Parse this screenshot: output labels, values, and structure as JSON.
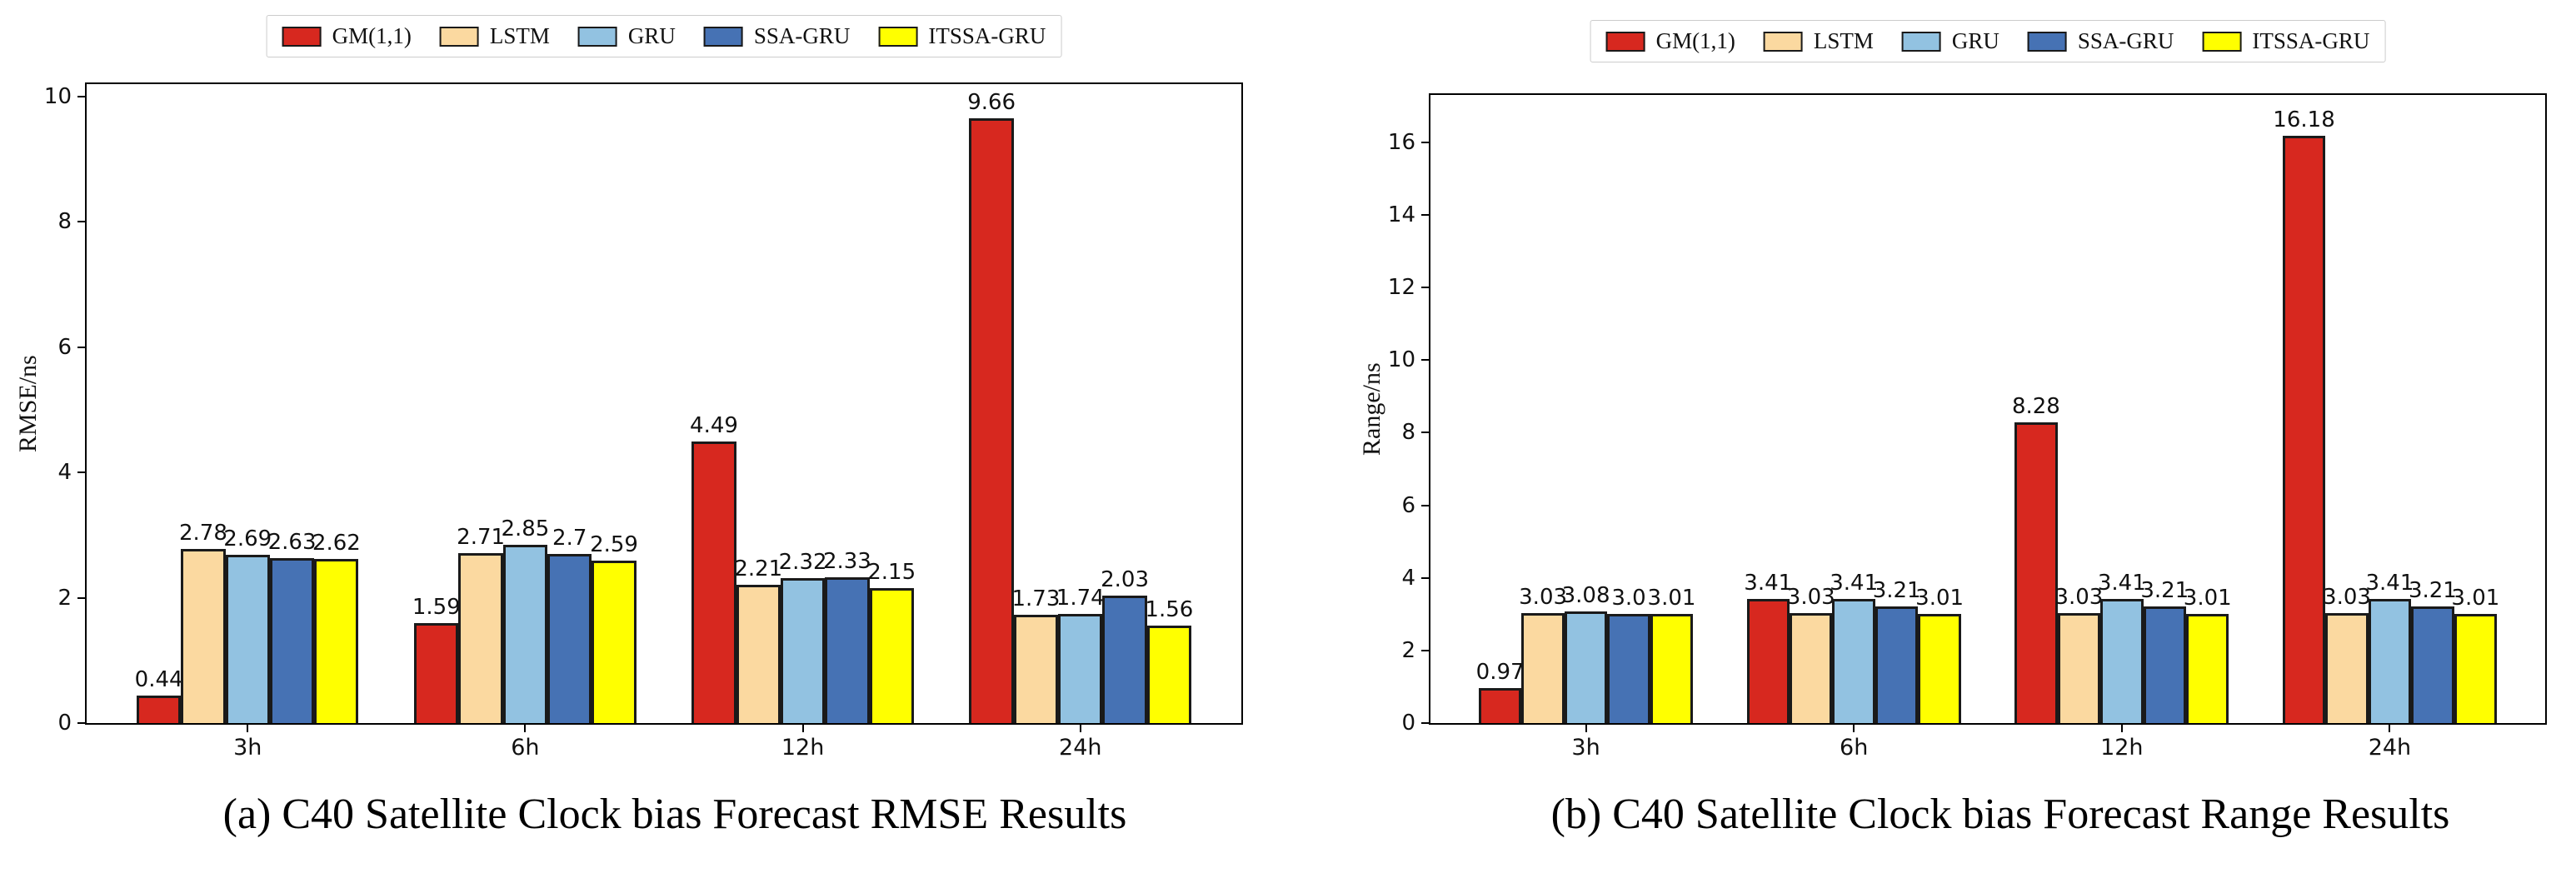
{
  "bar_edge_color": "#1a1a1a",
  "chart_data": [
    {
      "type": "bar",
      "title": "(a) C40 Satellite Clock bias Forecast RMSE Results",
      "xlabel": "",
      "ylabel": "RMSE/ns",
      "categories": [
        "3h",
        "6h",
        "12h",
        "24h"
      ],
      "ylim": [
        0,
        10.2
      ],
      "yticks": [
        0,
        2,
        4,
        6,
        8,
        10
      ],
      "grid": false,
      "legend_position": "top-center",
      "series": [
        {
          "name": "GM(1,1)",
          "color": "#d7281f",
          "values": [
            0.44,
            1.59,
            4.49,
            9.66
          ],
          "labels": [
            "0.44",
            "1.59",
            "4.49",
            "9.66"
          ]
        },
        {
          "name": "LSTM",
          "color": "#fbd9a0",
          "values": [
            2.78,
            2.71,
            2.21,
            1.73
          ],
          "labels": [
            "2.78",
            "2.71",
            "2.21",
            "1.73"
          ]
        },
        {
          "name": "GRU",
          "color": "#92c2e1",
          "values": [
            2.69,
            2.85,
            2.32,
            1.74
          ],
          "labels": [
            "2.69",
            "2.85",
            "2.32",
            "1.74"
          ]
        },
        {
          "name": "SSA-GRU",
          "color": "#4672b4",
          "values": [
            2.63,
            2.7,
            2.33,
            2.03
          ],
          "labels": [
            "2.63",
            "2.7",
            "2.33",
            "2.03"
          ]
        },
        {
          "name": "ITSSA-GRU",
          "color": "#ffff00",
          "values": [
            2.62,
            2.59,
            2.15,
            1.56
          ],
          "labels": [
            "2.62",
            "2.59",
            "2.15",
            "1.56"
          ]
        }
      ]
    },
    {
      "type": "bar",
      "title": "(b) C40 Satellite Clock bias Forecast Range Results",
      "xlabel": "",
      "ylabel": "Range/ns",
      "categories": [
        "3h",
        "6h",
        "12h",
        "24h"
      ],
      "ylim": [
        0,
        17.3
      ],
      "yticks": [
        0,
        2,
        4,
        6,
        8,
        10,
        12,
        14,
        16
      ],
      "grid": false,
      "legend_position": "top-center",
      "series": [
        {
          "name": "GM(1,1)",
          "color": "#d7281f",
          "values": [
            0.97,
            3.41,
            8.28,
            16.18
          ],
          "labels": [
            "0.97",
            "3.41",
            "8.28",
            "16.18"
          ]
        },
        {
          "name": "LSTM",
          "color": "#fbd9a0",
          "values": [
            3.03,
            3.03,
            3.03,
            3.03
          ],
          "labels": [
            "3.03",
            "3.03",
            "3.03",
            "3.03"
          ]
        },
        {
          "name": "GRU",
          "color": "#92c2e1",
          "values": [
            3.08,
            3.41,
            3.41,
            3.41
          ],
          "labels": [
            "3.08",
            "3.41",
            "3.41",
            "3.41"
          ]
        },
        {
          "name": "SSA-GRU",
          "color": "#4672b4",
          "values": [
            3.0,
            3.21,
            3.21,
            3.21
          ],
          "labels": [
            "3.0",
            "3.21",
            "3.21",
            "3.21"
          ]
        },
        {
          "name": "ITSSA-GRU",
          "color": "#ffff00",
          "values": [
            3.01,
            3.01,
            3.01,
            3.01
          ],
          "labels": [
            "3.01",
            "3.01",
            "3.01",
            "3.01"
          ]
        }
      ]
    }
  ]
}
